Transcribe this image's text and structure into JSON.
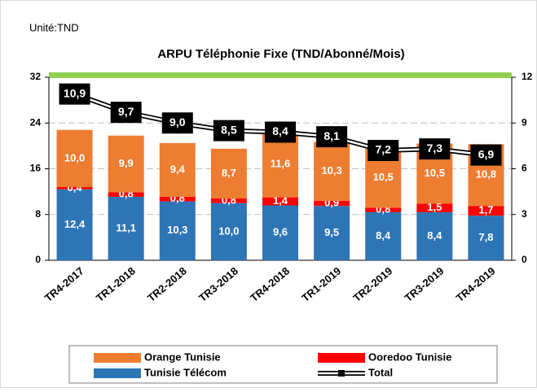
{
  "chart_data": {
    "type": "bar",
    "stacked": true,
    "unit_label": "Unité:TND",
    "title": "ARPU Téléphonie Fixe (TND/Abonné/Mois)",
    "categories": [
      "TR4-2017",
      "TR1-2018",
      "TR2-2018",
      "TR3-2018",
      "TR4-2018",
      "TR1-2019",
      "TR2-2019",
      "TR3-2019",
      "TR4-2019"
    ],
    "series": [
      {
        "name": "Tunisie Télécom",
        "color": "#2e75b6",
        "values": [
          12.4,
          11.1,
          10.3,
          10.0,
          9.6,
          9.5,
          8.4,
          8.4,
          7.8
        ],
        "value_labels": [
          "12,4",
          "11,1",
          "10,3",
          "10,0",
          "9,6",
          "9,5",
          "8,4",
          "8,4",
          "7,8"
        ]
      },
      {
        "name": "Ooredoo Tunisie",
        "color": "#ff0000",
        "values": [
          0.4,
          0.8,
          0.8,
          0.8,
          1.4,
          0.9,
          0.8,
          1.5,
          1.7
        ],
        "value_labels": [
          "0,4",
          "0,8",
          "0,8",
          "0,8",
          "1,4",
          "0,9",
          "0,8",
          "1,5",
          "1,7"
        ]
      },
      {
        "name": "Orange Tunisie",
        "color": "#ed7d31",
        "values": [
          10.0,
          9.9,
          9.4,
          8.7,
          11.6,
          10.3,
          10.5,
          10.5,
          10.8
        ],
        "value_labels": [
          "10,0",
          "9,9",
          "9,4",
          "8,7",
          "11,6",
          "10,3",
          "10,5",
          "10,5",
          "10,8"
        ]
      },
      {
        "name": "Total",
        "color": "#000000",
        "type": "line",
        "axis": "y2",
        "values": [
          10.9,
          9.7,
          9.0,
          8.5,
          8.4,
          8.1,
          7.2,
          7.3,
          6.9
        ],
        "value_labels": [
          "10,9",
          "9,7",
          "9,0",
          "8,5",
          "8,4",
          "8,1",
          "7,2",
          "7,3",
          "6,9"
        ]
      }
    ],
    "ylim": [
      0,
      32
    ],
    "yticks": [
      0,
      8,
      16,
      24,
      32
    ],
    "y2lim": [
      0,
      12
    ],
    "y2ticks": [
      0,
      3,
      6,
      9,
      12
    ],
    "grid": true,
    "legend": "bottom"
  }
}
